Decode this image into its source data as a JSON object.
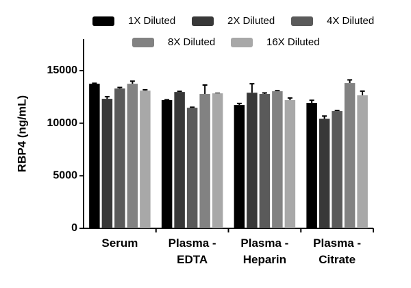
{
  "chart_data": {
    "type": "bar",
    "y_label": "RBP4 (ng/mL)",
    "categories": [
      "Serum",
      "Plasma -\nEDTA",
      "Plasma -\nHeparin",
      "Plasma -\nCitrate"
    ],
    "series": [
      {
        "name": "1X Diluted",
        "color": "#000000",
        "values": [
          13750,
          12200,
          11730,
          11930
        ],
        "errors": [
          50,
          30,
          150,
          250
        ]
      },
      {
        "name": "2X Diluted",
        "color": "#383838",
        "values": [
          12320,
          12970,
          12900,
          10430
        ],
        "errors": [
          200,
          60,
          850,
          250
        ]
      },
      {
        "name": "4X Diluted",
        "color": "#5a5a5a",
        "values": [
          13300,
          11470,
          12780,
          11150
        ],
        "errors": [
          100,
          50,
          100,
          60
        ]
      },
      {
        "name": "8X Diluted",
        "color": "#828282",
        "values": [
          13750,
          12780,
          13040,
          13820
        ],
        "errors": [
          250,
          850,
          50,
          300
        ]
      },
      {
        "name": "16X Diluted",
        "color": "#a8a8a8",
        "values": [
          13100,
          12840,
          12200,
          12650
        ],
        "errors": [
          80,
          0,
          200,
          400
        ]
      }
    ],
    "ylim": [
      0,
      18000
    ],
    "yticks": [
      0,
      5000,
      10000,
      15000
    ],
    "grid": false
  }
}
